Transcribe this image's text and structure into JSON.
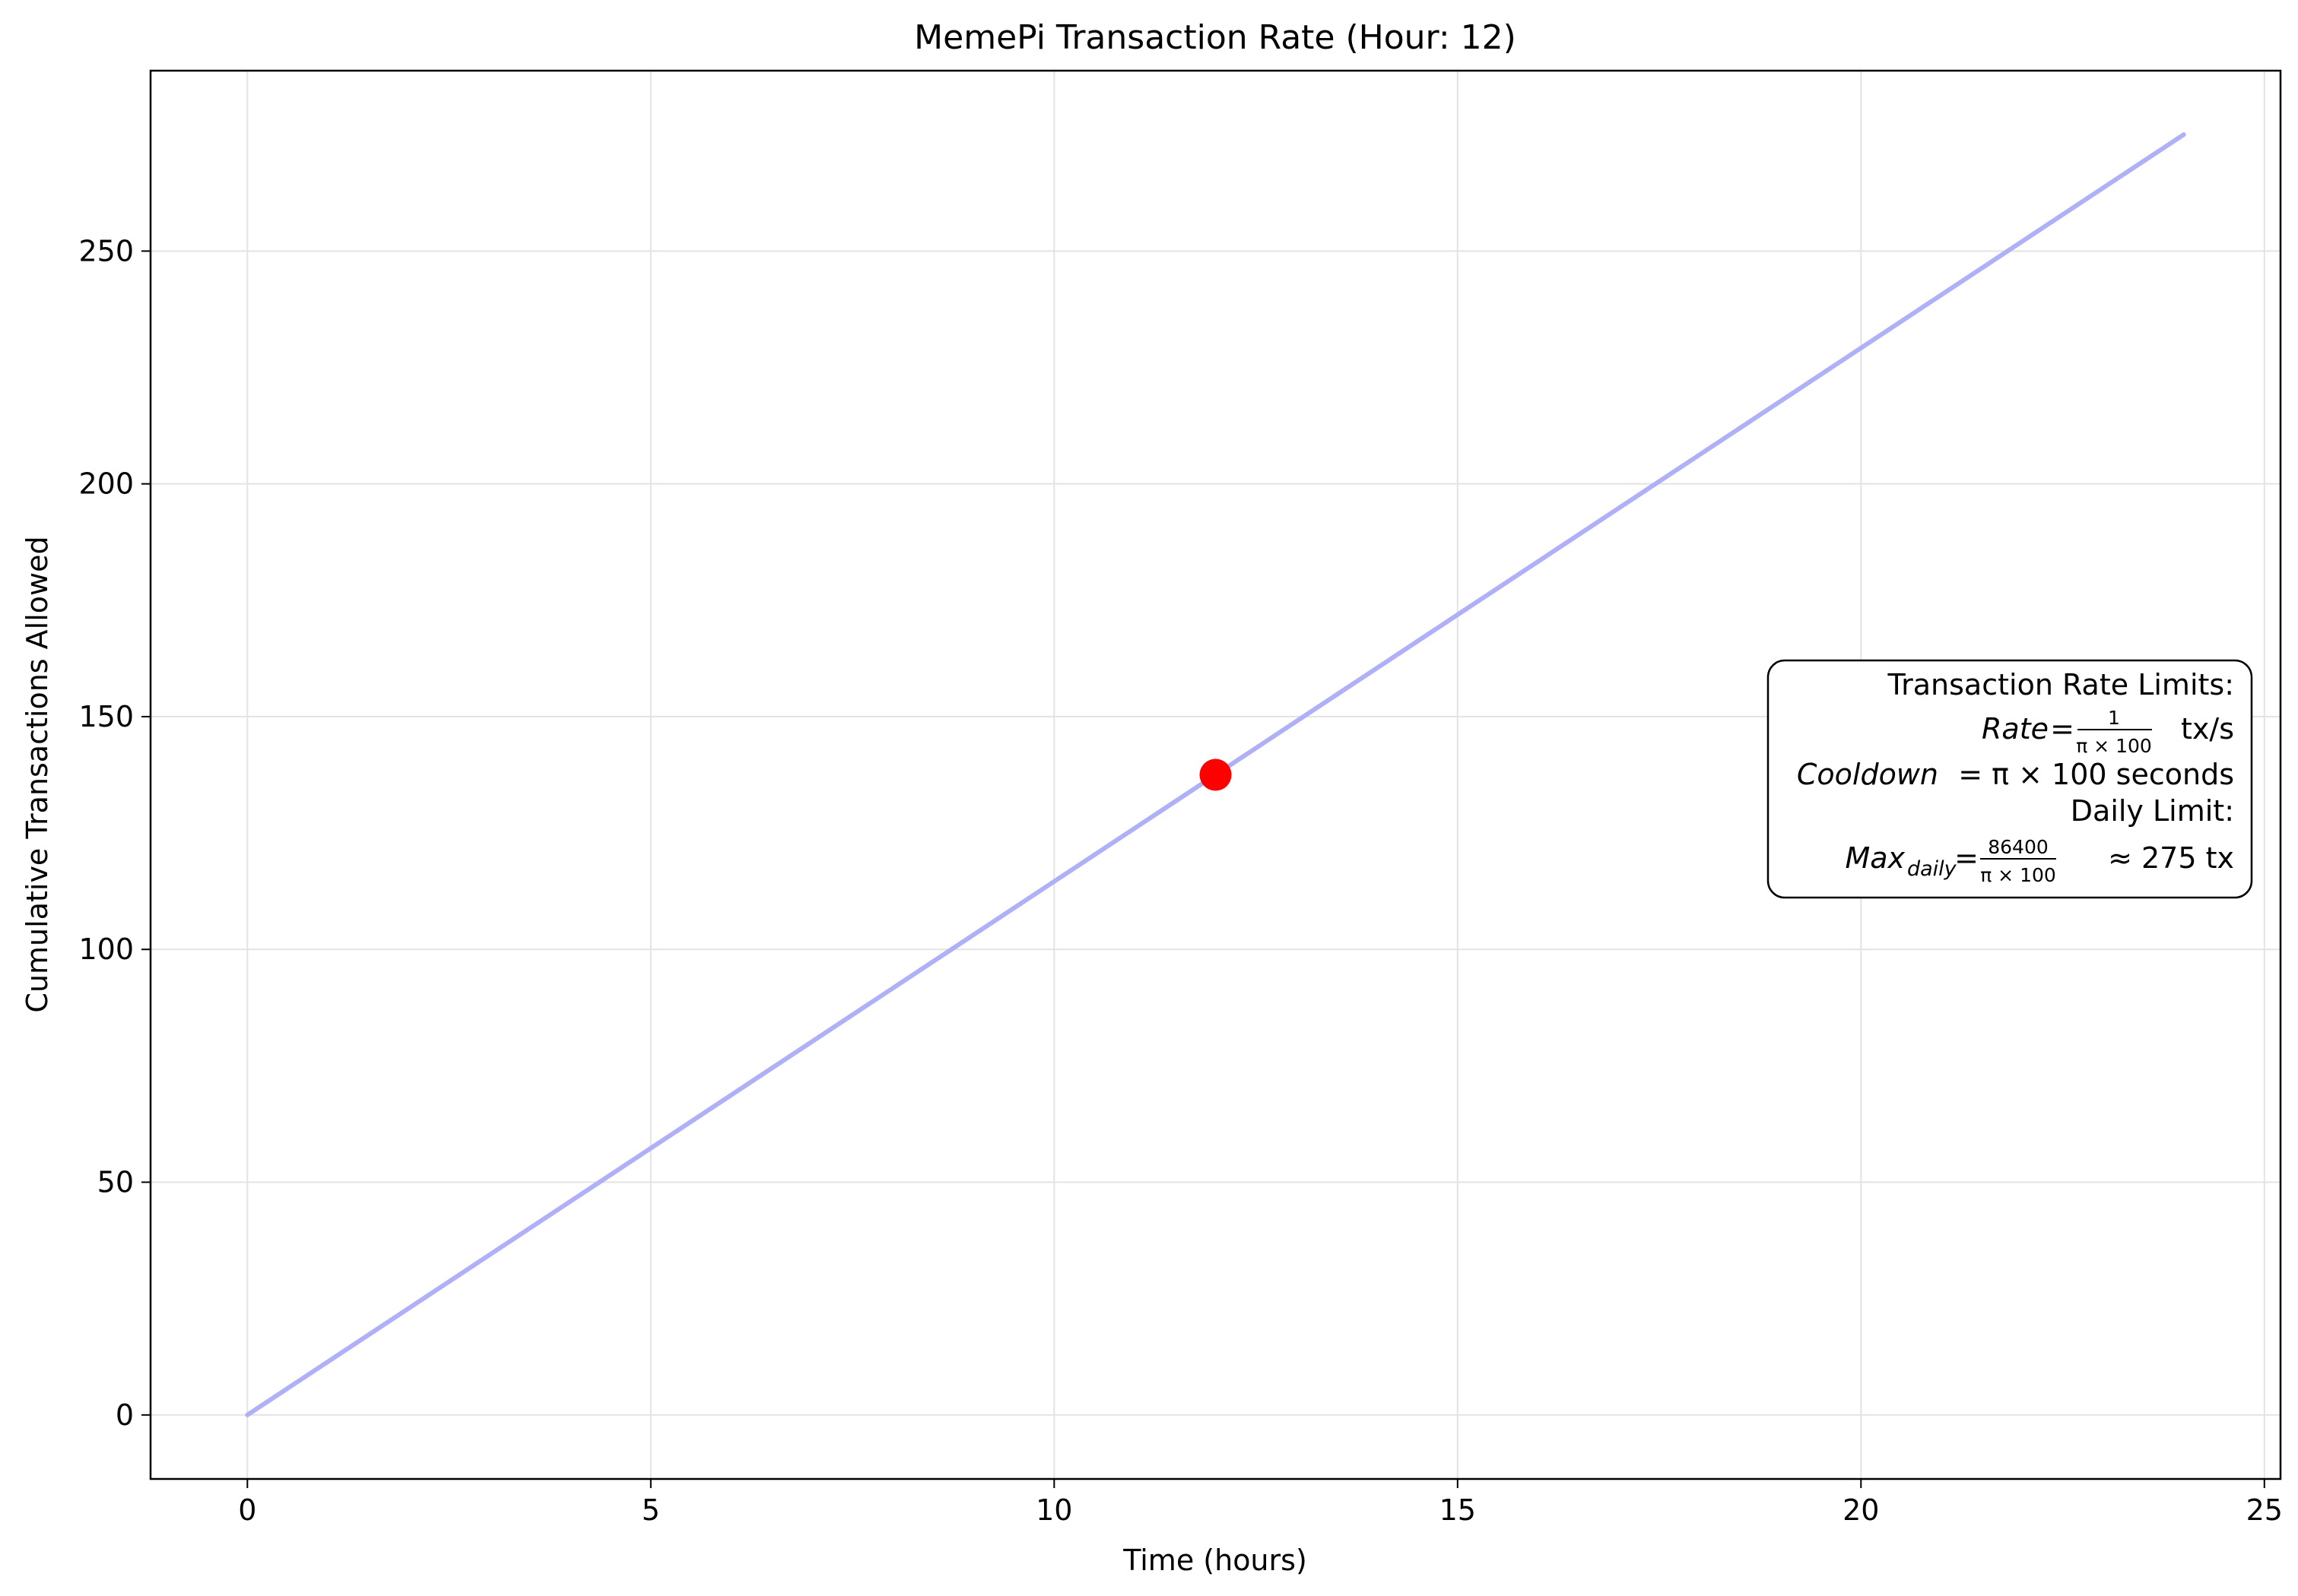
{
  "chart_data": {
    "type": "line",
    "title": "MemePi Transaction Rate (Hour: 12)",
    "xlabel": "Time (hours)",
    "ylabel": "Cumulative Transactions Allowed",
    "xlim": [
      -1.2,
      25.2
    ],
    "ylim": [
      -13.75,
      288.75
    ],
    "xticks": [
      0,
      5,
      10,
      15,
      20,
      25
    ],
    "yticks": [
      0,
      50,
      100,
      150,
      200,
      250
    ],
    "grid": true,
    "series": [
      {
        "color": "#b0b0f8",
        "x": [
          0,
          24
        ],
        "y": [
          0,
          275.02
        ]
      }
    ],
    "highlight": {
      "x": 12,
      "y": 137.5,
      "color": "#ff0000"
    },
    "annotation": {
      "placement": "right",
      "line1": "Transaction Rate Limits:",
      "rate_var": "Rate",
      "rate_num": "1",
      "rate_den": "π × 100",
      "rate_unit": "tx/s",
      "cooldown_var": "Cooldown",
      "cooldown_rest": "= π × 100 seconds",
      "line4": "Daily Limit:",
      "max_var": "Max",
      "max_sub": "daily",
      "max_num": "86400",
      "max_den": "π × 100",
      "max_rest": "≈ 275 tx"
    }
  }
}
